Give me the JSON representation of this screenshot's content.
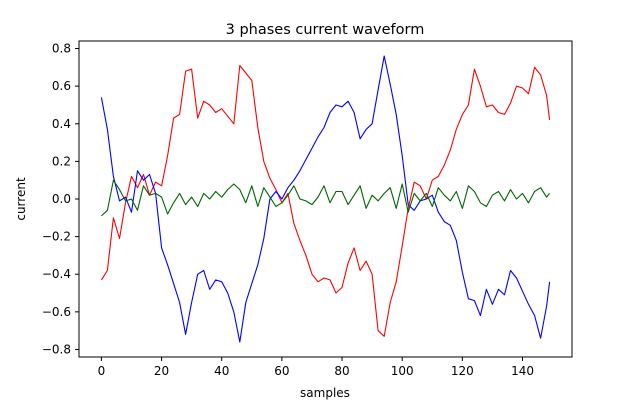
{
  "chart_data": {
    "type": "line",
    "title": "3 phases current waveform",
    "xlabel": "samples",
    "ylabel": "current",
    "xlim": [
      -7.45,
      156.45
    ],
    "ylim": [
      -0.84,
      0.84
    ],
    "xticks": [
      0,
      20,
      40,
      60,
      80,
      100,
      120,
      140
    ],
    "yticks": [
      -0.8,
      -0.6,
      -0.4,
      -0.2,
      0.0,
      0.2,
      0.4,
      0.6,
      0.8
    ],
    "xtick_labels": [
      "0",
      "20",
      "40",
      "60",
      "80",
      "100",
      "120",
      "140"
    ],
    "ytick_labels": [
      "−0.8",
      "−0.6",
      "−0.4",
      "−0.2",
      "0.0",
      "0.2",
      "0.4",
      "0.6",
      "0.8"
    ],
    "grid": false,
    "legend": "none",
    "series": [
      {
        "name": "phase-red",
        "color": "#ff0000",
        "x": [
          0,
          2,
          4,
          6,
          8,
          10,
          12,
          14,
          16,
          18,
          20,
          22,
          24,
          26,
          28,
          30,
          32,
          34,
          36,
          38,
          40,
          42,
          44,
          46,
          48,
          50,
          52,
          54,
          56,
          58,
          60,
          62,
          64,
          66,
          68,
          70,
          72,
          74,
          76,
          78,
          80,
          82,
          84,
          86,
          88,
          90,
          92,
          94,
          96,
          98,
          100,
          102,
          104,
          106,
          108,
          110,
          112,
          114,
          116,
          118,
          120,
          122,
          124,
          126,
          128,
          130,
          132,
          134,
          136,
          138,
          140,
          142,
          144,
          146,
          148,
          149
        ],
        "values": [
          -0.43,
          -0.38,
          -0.1,
          -0.21,
          -0.02,
          0.12,
          0.06,
          0.13,
          0.02,
          0.09,
          0.07,
          0.23,
          0.43,
          0.45,
          0.68,
          0.69,
          0.43,
          0.52,
          0.5,
          0.46,
          0.48,
          0.44,
          0.4,
          0.71,
          0.67,
          0.63,
          0.38,
          0.2,
          0.11,
          0.05,
          -0.02,
          0.03,
          -0.13,
          -0.22,
          -0.3,
          -0.4,
          -0.44,
          -0.42,
          -0.43,
          -0.5,
          -0.47,
          -0.34,
          -0.26,
          -0.38,
          -0.33,
          -0.4,
          -0.7,
          -0.73,
          -0.55,
          -0.44,
          -0.25,
          -0.05,
          0.09,
          0.07,
          0.0,
          0.1,
          0.12,
          0.18,
          0.26,
          0.37,
          0.45,
          0.5,
          0.69,
          0.6,
          0.49,
          0.5,
          0.46,
          0.45,
          0.51,
          0.6,
          0.59,
          0.56,
          0.7,
          0.66,
          0.55,
          0.42
        ]
      },
      {
        "name": "phase-blue",
        "color": "#0000ff",
        "x": [
          0,
          2,
          4,
          6,
          8,
          10,
          12,
          14,
          16,
          18,
          20,
          22,
          24,
          26,
          28,
          30,
          32,
          34,
          36,
          38,
          40,
          42,
          44,
          46,
          48,
          50,
          52,
          54,
          56,
          58,
          60,
          62,
          64,
          66,
          68,
          70,
          72,
          74,
          76,
          78,
          80,
          82,
          84,
          86,
          88,
          90,
          92,
          94,
          96,
          98,
          100,
          102,
          104,
          106,
          108,
          110,
          112,
          114,
          116,
          118,
          120,
          122,
          124,
          126,
          128,
          130,
          132,
          134,
          136,
          138,
          140,
          142,
          144,
          146,
          148,
          149
        ],
        "values": [
          0.54,
          0.37,
          0.12,
          -0.01,
          0.01,
          -0.07,
          0.15,
          0.1,
          0.13,
          0.03,
          -0.26,
          -0.35,
          -0.45,
          -0.55,
          -0.72,
          -0.55,
          -0.4,
          -0.38,
          -0.48,
          -0.43,
          -0.44,
          -0.5,
          -0.6,
          -0.76,
          -0.55,
          -0.45,
          -0.35,
          -0.21,
          0.0,
          0.04,
          0.0,
          0.06,
          0.1,
          0.15,
          0.21,
          0.27,
          0.33,
          0.38,
          0.46,
          0.5,
          0.49,
          0.52,
          0.46,
          0.32,
          0.37,
          0.4,
          0.58,
          0.76,
          0.61,
          0.45,
          0.23,
          -0.03,
          -0.06,
          -0.01,
          0.0,
          0.02,
          -0.07,
          -0.12,
          -0.14,
          -0.22,
          -0.39,
          -0.53,
          -0.54,
          -0.62,
          -0.48,
          -0.56,
          -0.48,
          -0.51,
          -0.38,
          -0.42,
          -0.49,
          -0.56,
          -0.62,
          -0.74,
          -0.57,
          -0.44
        ]
      },
      {
        "name": "phase-green",
        "color": "#006400",
        "x": [
          0,
          2,
          4,
          6,
          8,
          10,
          12,
          14,
          16,
          18,
          20,
          22,
          24,
          26,
          28,
          30,
          32,
          34,
          36,
          38,
          40,
          42,
          44,
          46,
          48,
          50,
          52,
          54,
          56,
          58,
          60,
          62,
          64,
          66,
          68,
          70,
          72,
          74,
          76,
          78,
          80,
          82,
          84,
          86,
          88,
          90,
          92,
          94,
          96,
          98,
          100,
          102,
          104,
          106,
          108,
          110,
          112,
          114,
          116,
          118,
          120,
          122,
          124,
          126,
          128,
          130,
          132,
          134,
          136,
          138,
          140,
          142,
          144,
          146,
          148,
          149
        ],
        "values": [
          -0.09,
          -0.06,
          0.1,
          0.05,
          -0.01,
          0.0,
          -0.06,
          0.07,
          0.02,
          0.03,
          0.01,
          -0.08,
          -0.02,
          0.03,
          -0.03,
          0.01,
          -0.04,
          0.03,
          0.0,
          0.04,
          0.01,
          0.05,
          0.08,
          0.05,
          -0.02,
          0.07,
          -0.04,
          0.06,
          0.01,
          -0.04,
          -0.02,
          0.02,
          0.07,
          0.0,
          -0.01,
          -0.03,
          0.01,
          0.07,
          -0.02,
          0.04,
          0.04,
          -0.03,
          0.02,
          0.07,
          -0.05,
          0.02,
          -0.01,
          0.03,
          0.06,
          -0.05,
          0.08,
          -0.07,
          0.03,
          -0.01,
          0.03,
          -0.04,
          0.06,
          0.02,
          -0.01,
          0.04,
          -0.05,
          0.07,
          0.04,
          -0.02,
          -0.04,
          0.02,
          0.04,
          -0.01,
          0.05,
          0.0,
          0.03,
          -0.02,
          0.04,
          0.06,
          0.01,
          0.03
        ]
      }
    ]
  }
}
